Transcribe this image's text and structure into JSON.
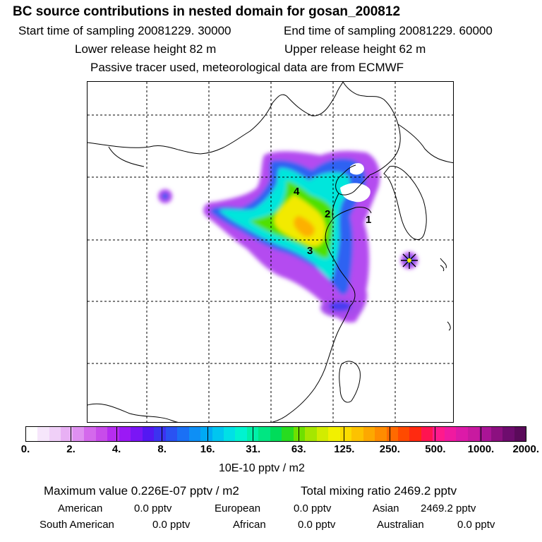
{
  "header": {
    "title": "BC  source contributions in nested domain for gosan_200812",
    "start_time": "Start time of sampling 20081229. 30000",
    "end_time": "End time of sampling 20081229. 60000",
    "lower_release": "Lower release height   82 m",
    "upper_release": "Upper release height   62 m",
    "tracer_note": "Passive tracer used, meteorological data are from ECMWF"
  },
  "chart_data": {
    "type": "heatmap",
    "title": "BC  source contributions in nested domain for gosan_200812",
    "colorbar": {
      "ticks": [
        "0.",
        "2.",
        "4.",
        "8.",
        "16.",
        "31.",
        "63.",
        "125.",
        "250.",
        "500.",
        "1000.",
        "2000."
      ],
      "units": "10E-10 pptv / m2",
      "colors": [
        "#ffffff",
        "#f6e6fb",
        "#f0d0f8",
        "#e8b0f4",
        "#df90f0",
        "#d469ec",
        "#c84cea",
        "#b62df0",
        "#9b19f5",
        "#7a16f5",
        "#5418f2",
        "#3c33f0",
        "#2a52f2",
        "#1a70f5",
        "#0e8ff5",
        "#00aaf5",
        "#00c6f0",
        "#00e0e6",
        "#00f3d0",
        "#00f0a8",
        "#00e682",
        "#00dc5a",
        "#28dc20",
        "#6ee000",
        "#a6e600",
        "#d2ec00",
        "#f2f000",
        "#fbdb00",
        "#fdc200",
        "#fda800",
        "#ff8c00",
        "#ff6a00",
        "#ff4a00",
        "#ff2a10",
        "#ff1450",
        "#ff1a8c",
        "#f01aa0",
        "#dc1aa8",
        "#c81aa0",
        "#aa1496",
        "#8c1080",
        "#6e0c6e",
        "#5a0a5a"
      ]
    },
    "source_labels": [
      "1",
      "2",
      "3",
      "4"
    ],
    "receptor": "gosan"
  },
  "footer": {
    "max_value": "Maximum value  0.226E-07 pptv / m2",
    "total_mixing": "Total mixing ratio     2469.2 pptv",
    "regions": [
      {
        "name": "American",
        "value": "0.0 pptv"
      },
      {
        "name": "European",
        "value": "0.0 pptv"
      },
      {
        "name": "Asian",
        "value": "2469.2 pptv"
      },
      {
        "name": "South American",
        "value": "0.0 pptv"
      },
      {
        "name": "African",
        "value": "0.0 pptv"
      },
      {
        "name": "Australian",
        "value": "0.0 pptv"
      }
    ]
  }
}
